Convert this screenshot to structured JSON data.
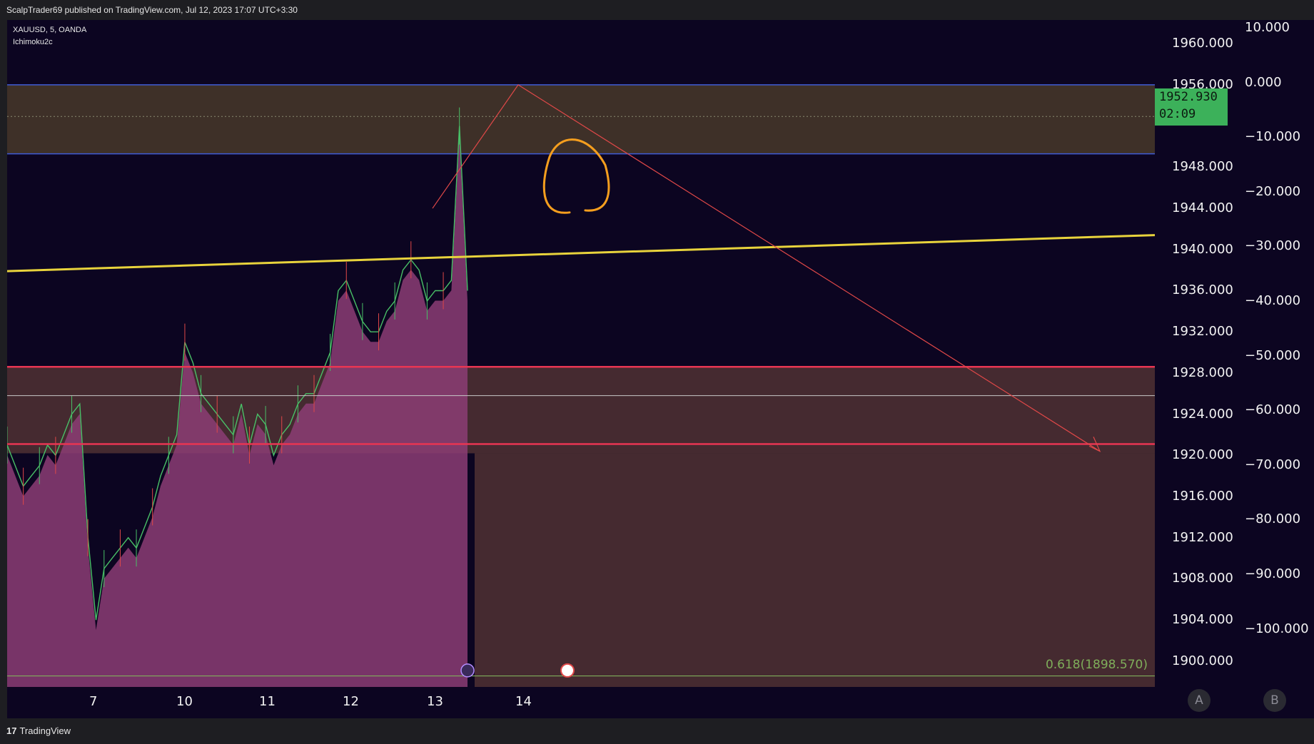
{
  "header": {
    "published": "ScalpTrader69 published on TradingView.com, Jul 12, 2023 17:07 UTC+3:30"
  },
  "legend": {
    "symbol": "XAUUSD, 5, OANDA",
    "indicator": "Ichimoku2c"
  },
  "price_label": {
    "price": "1952.930",
    "countdown": "02:09"
  },
  "fib_label": "0.618(1898.570)",
  "footer": {
    "brand": "TradingView"
  },
  "buttons": {
    "a": "A",
    "b": "B"
  },
  "colors": {
    "background": "#0c0521",
    "resistance_zone": "#3e3028",
    "support_zone": "#452a30",
    "trendline": "#e8d33c",
    "support_line": "#e83552",
    "arrow": "#e04848",
    "circle": "#f59e1e",
    "cloud_fill": "#8c3d74",
    "price_label": "#3cb15a"
  },
  "chart_data": {
    "type": "line",
    "title": "",
    "xlabel": "",
    "ylabel": "",
    "x_ticks": [
      "7",
      "10",
      "11",
      "12",
      "13",
      "14"
    ],
    "ylim": [
      1897.5,
      1962.3
    ],
    "y_ticks": [
      "1960.000",
      "1956.000",
      "1948.000",
      "1944.000",
      "1940.000",
      "1936.000",
      "1932.000",
      "1928.000",
      "1924.000",
      "1920.000",
      "1916.000",
      "1912.000",
      "1908.000",
      "1904.000",
      "1900.000"
    ],
    "y2_ticks": [
      "10.000",
      "0.000",
      "−10.000",
      "−20.000",
      "−30.000",
      "−40.000",
      "−50.000",
      "−60.000",
      "−70.000",
      "−80.000",
      "−90.000",
      "−100.000"
    ],
    "series": [
      {
        "values": [
          1921,
          1919,
          1917,
          1918,
          1919,
          1921,
          1920,
          1922,
          1924,
          1925,
          1912,
          1904,
          1909,
          1910,
          1911,
          1912,
          1911,
          1913,
          1915,
          1918,
          1920,
          1922,
          1931,
          1929,
          1926,
          1925,
          1924,
          1923,
          1922,
          1925,
          1921,
          1924,
          1923,
          1920,
          1922,
          1923,
          1925,
          1926,
          1926,
          1928,
          1930,
          1936,
          1937,
          1935,
          1933,
          1932,
          1932,
          1934,
          1935,
          1938,
          1939,
          1938,
          1935,
          1936,
          1936,
          1937,
          1952,
          1936
        ]
      }
    ],
    "zones": [
      {
        "name": "resistance",
        "from": 1949.3,
        "to": 1956.0
      },
      {
        "name": "support",
        "from": 1920.2,
        "to": 1928.6
      }
    ],
    "lines": [
      {
        "name": "support-line-upper",
        "y": 1928.6
      },
      {
        "name": "support-line-lower",
        "y": 1921.1
      },
      {
        "name": "fib-0.618",
        "y": 1898.57
      }
    ]
  }
}
